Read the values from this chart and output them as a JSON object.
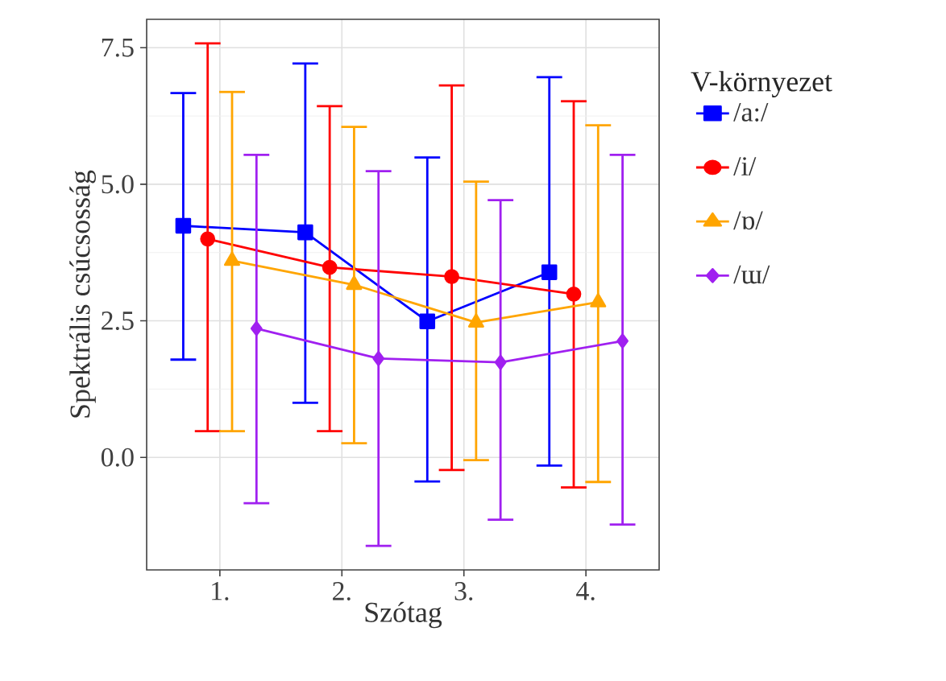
{
  "chart_data": {
    "type": "line",
    "xlabel": "Szótag",
    "ylabel": "Spektrális csúcsosság",
    "legend_title": "V-környezet",
    "categories": [
      "1.",
      "2.",
      "3.",
      "4."
    ],
    "ylim": [
      -2.06,
      8.02
    ],
    "yticks": [
      {
        "value": 0,
        "label": "0.0"
      },
      {
        "value": 2.5,
        "label": "2.5"
      },
      {
        "value": 5,
        "label": "5.0"
      },
      {
        "value": 7.5,
        "label": "7.5"
      }
    ],
    "grid": true,
    "legend": "right",
    "series": [
      {
        "name": "/a:/",
        "color": "#0000ff",
        "marker": "square",
        "values": [
          4.24,
          4.12,
          2.49,
          3.39
        ],
        "errors": [
          [
            1.79,
            6.67
          ],
          [
            1.0,
            7.21
          ],
          [
            -0.44,
            5.49
          ],
          [
            -0.15,
            6.96
          ]
        ]
      },
      {
        "name": "/i/",
        "color": "#ff0000",
        "marker": "circle",
        "values": [
          4.0,
          3.48,
          3.31,
          2.99
        ],
        "errors": [
          [
            0.48,
            7.58
          ],
          [
            0.48,
            6.43
          ],
          [
            -0.23,
            6.81
          ],
          [
            -0.55,
            6.52
          ]
        ]
      },
      {
        "name": "/ɒ/",
        "color": "#ffa500",
        "marker": "triangle",
        "values": [
          3.6,
          3.16,
          2.47,
          2.84
        ],
        "errors": [
          [
            0.48,
            6.69
          ],
          [
            0.26,
            6.05
          ],
          [
            -0.05,
            5.05
          ],
          [
            -0.45,
            6.08
          ]
        ]
      },
      {
        "name": "/ɯ/",
        "color": "#a020f0",
        "marker": "diamond",
        "values": [
          2.36,
          1.81,
          1.74,
          2.13
        ],
        "errors": [
          [
            -0.84,
            5.54
          ],
          [
            -1.62,
            5.24
          ],
          [
            -1.14,
            4.71
          ],
          [
            -1.23,
            5.54
          ]
        ]
      }
    ]
  }
}
